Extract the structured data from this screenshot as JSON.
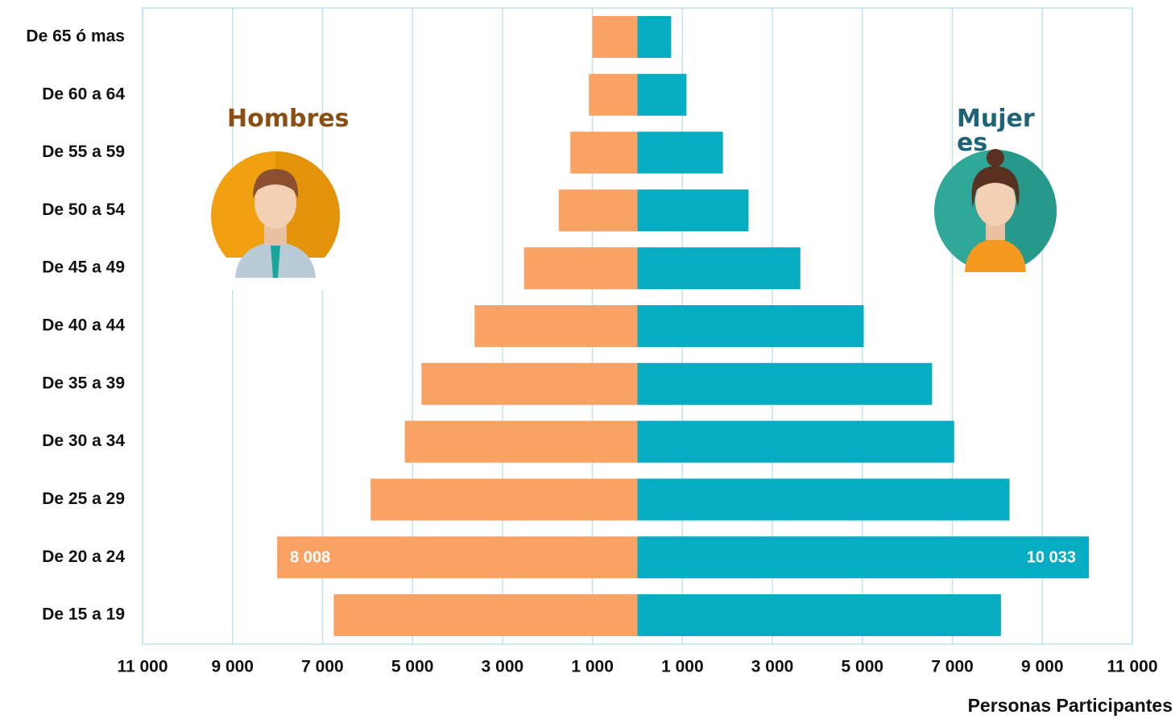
{
  "chart_data": {
    "type": "population-pyramid",
    "categories": [
      "De 65 ó mas",
      "De 60 a 64",
      "De 55 a 59",
      "De 50 a 54",
      "De 45 a 49",
      "De 40 a 44",
      "De 35 a 39",
      "De 30 a 34",
      "De 25 a 29",
      "De 20 a 24",
      "De 15 a 19"
    ],
    "series": [
      {
        "name": "Hombres",
        "color": "#f9a264",
        "side": "left",
        "values": [
          1000,
          1080,
          1490,
          1750,
          2520,
          3620,
          4800,
          5170,
          5930,
          8008,
          6750
        ],
        "value_labels": [
          null,
          null,
          null,
          null,
          null,
          null,
          null,
          null,
          null,
          "8 008",
          null
        ]
      },
      {
        "name": "Mujeres",
        "color": "#06adc2",
        "side": "right",
        "values": [
          750,
          1090,
          1900,
          2470,
          3620,
          5030,
          6550,
          7040,
          8270,
          10033,
          8080
        ],
        "value_labels": [
          null,
          null,
          null,
          null,
          null,
          null,
          null,
          null,
          null,
          "10 033",
          null
        ]
      }
    ],
    "xlabel": "Personas Participantes",
    "xlim": [
      -11000,
      11000
    ],
    "xticks": [
      {
        "value": -11000,
        "label": "11 000"
      },
      {
        "value": -9000,
        "label": "9 000"
      },
      {
        "value": -7000,
        "label": "7 000"
      },
      {
        "value": -5000,
        "label": "5 000"
      },
      {
        "value": -3000,
        "label": "3 000"
      },
      {
        "value": -1000,
        "label": "1 000"
      },
      {
        "value": 1000,
        "label": "1 000"
      },
      {
        "value": 3000,
        "label": "3 000"
      },
      {
        "value": 5000,
        "label": "5 000"
      },
      {
        "value": 7000,
        "label": "7 000"
      },
      {
        "value": 9000,
        "label": "9 000"
      },
      {
        "value": 11000,
        "label": "11 000"
      }
    ],
    "grid": true
  }
}
